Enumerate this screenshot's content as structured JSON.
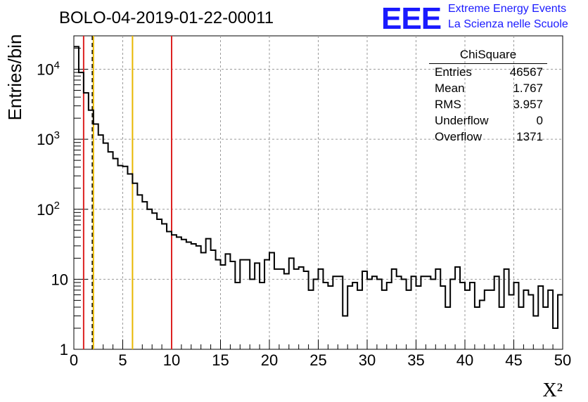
{
  "chart_data": {
    "type": "histogram",
    "title": "BOLO-04-2019-01-22-00011",
    "xlabel": "X²",
    "ylabel": "Entries/bin",
    "xlim": [
      0,
      50
    ],
    "ylim": [
      1,
      30000
    ],
    "yscale": "log",
    "grid": true,
    "bin_width": 0.5,
    "xticks": [
      "0",
      "5",
      "10",
      "15",
      "20",
      "25",
      "30",
      "35",
      "40",
      "45",
      "50"
    ],
    "yticks": [
      {
        "value": 1,
        "label": "1"
      },
      {
        "value": 10,
        "label": "10"
      },
      {
        "value": 100,
        "label": "10^2"
      },
      {
        "value": 1000,
        "label": "10^3"
      },
      {
        "value": 10000,
        "label": "10^4"
      }
    ],
    "bin_values": [
      21000,
      9000,
      4600,
      2600,
      1650,
      1150,
      880,
      660,
      530,
      420,
      410,
      320,
      235,
      160,
      128,
      100,
      88,
      72,
      62,
      48,
      43,
      40,
      37,
      34,
      32,
      30,
      24,
      38,
      26,
      19,
      16,
      23,
      18,
      9,
      19,
      19,
      10,
      17,
      9,
      19,
      24,
      14,
      14,
      12,
      20,
      14,
      15,
      13,
      7,
      10,
      14,
      9,
      8,
      11,
      11,
      3,
      8,
      9,
      7,
      13,
      10,
      11,
      10,
      7,
      9,
      14,
      11,
      10,
      7,
      11,
      8,
      11,
      11,
      10,
      14,
      8,
      4,
      10,
      15,
      9,
      7,
      9,
      4,
      5,
      7,
      7,
      11,
      4,
      14,
      6,
      9,
      4,
      7,
      6,
      3,
      8,
      4,
      7,
      2,
      6
    ],
    "vertical_lines": [
      {
        "x": 1.0,
        "color": "#dd2222",
        "style": "solid"
      },
      {
        "x": 1.9,
        "color": "#000000",
        "style": "dashed"
      },
      {
        "x": 2.0,
        "color": "#e8b800",
        "style": "solid"
      },
      {
        "x": 6.0,
        "color": "#e8b800",
        "style": "solid"
      },
      {
        "x": 10.0,
        "color": "#dd2222",
        "style": "solid"
      }
    ],
    "stats": {
      "title": "ChiSquare",
      "rows": [
        {
          "key": "Entries",
          "value": "46567"
        },
        {
          "key": "Mean",
          "value": "1.767"
        },
        {
          "key": "RMS",
          "value": "3.957"
        },
        {
          "key": "Underflow",
          "value": "0"
        },
        {
          "key": "Overflow",
          "value": "1371"
        }
      ]
    }
  },
  "logo": {
    "mark": "EEE",
    "line1": "Extreme Energy Events",
    "line2": "La Scienza nelle Scuole",
    "color": "#1a1aff"
  }
}
